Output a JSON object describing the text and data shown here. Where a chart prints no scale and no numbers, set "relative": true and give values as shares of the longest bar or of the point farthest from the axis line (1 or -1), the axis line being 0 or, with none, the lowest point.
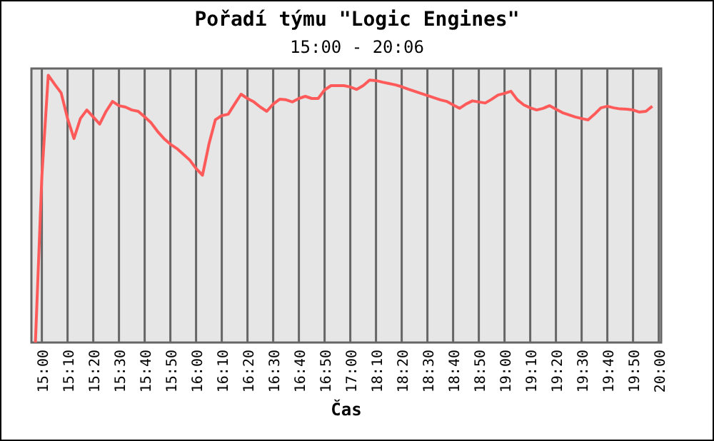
{
  "chart_data": {
    "type": "line",
    "title": "Pořadí týmu \"Logic Engines\"",
    "subtitle": "15:00 - 20:06",
    "xlabel": "Čas",
    "relative": true,
    "grid": "x",
    "categories": [
      null,
      "15:00",
      null,
      null,
      null,
      "15:10",
      null,
      null,
      null,
      "15:20",
      null,
      null,
      null,
      "15:30",
      null,
      null,
      null,
      "15:40",
      null,
      null,
      null,
      "15:50",
      null,
      null,
      null,
      "16:00",
      null,
      null,
      null,
      "16:10",
      null,
      null,
      null,
      "16:20",
      null,
      null,
      null,
      "16:30",
      null,
      null,
      null,
      "16:40",
      null,
      null,
      null,
      "16:50",
      null,
      null,
      null,
      "17:00",
      null,
      null,
      null,
      "18:10",
      null,
      null,
      null,
      "18:20",
      null,
      null,
      null,
      "18:30",
      null,
      null,
      null,
      "18:40",
      null,
      null,
      null,
      "18:50",
      null,
      null,
      null,
      "19:00",
      null,
      null,
      null,
      "19:10",
      null,
      null,
      null,
      "19:20",
      null,
      null,
      null,
      "19:30",
      null,
      null,
      null,
      "19:40",
      null,
      null,
      null,
      "19:50",
      null,
      null,
      null,
      "20:00"
    ],
    "series": [
      {
        "color": "#ff5a5a",
        "values": [
          0,
          0.62,
          1,
          0.966,
          0.934,
          0.838,
          0.763,
          0.838,
          0.87,
          0.844,
          0.817,
          0.865,
          0.902,
          0.886,
          0.881,
          0.87,
          0.865,
          0.844,
          0.822,
          0.79,
          0.763,
          0.742,
          0.726,
          0.705,
          0.683,
          0.651,
          0.626,
          0.742,
          0.833,
          0.849,
          0.854,
          0.892,
          0.929,
          0.913,
          0.9,
          0.881,
          0.865,
          0.892,
          0.91,
          0.908,
          0.9,
          0.913,
          0.921,
          0.913,
          0.913,
          0.945,
          0.961,
          0.961,
          0.961,
          0.956,
          0.947,
          0.961,
          0.982,
          0.98,
          0.974,
          0.969,
          0.964,
          0.957,
          0.948,
          0.94,
          0.932,
          0.924,
          0.916,
          0.908,
          0.902,
          0.889,
          0.876,
          0.892,
          0.904,
          0.9,
          0.896,
          0.91,
          0.926,
          0.932,
          0.94,
          0.908,
          0.889,
          0.878,
          0.87,
          0.876,
          0.886,
          0.873,
          0.86,
          0.852,
          0.844,
          0.838,
          0.833,
          0.854,
          0.878,
          0.884,
          0.878,
          0.874,
          0.873,
          0.87,
          0.862,
          0.865,
          0.884,
          null
        ]
      }
    ]
  }
}
